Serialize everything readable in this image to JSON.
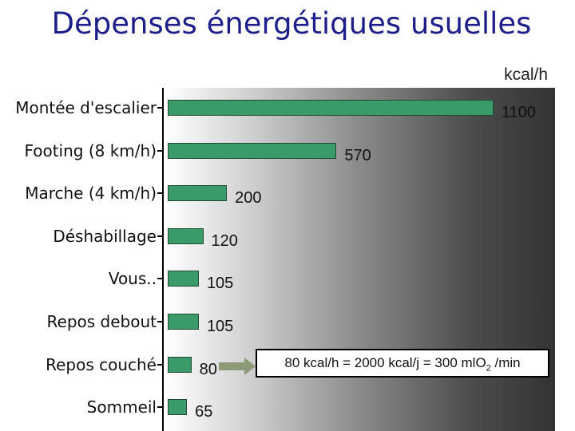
{
  "chart_data": {
    "type": "bar",
    "orientation": "horizontal",
    "title": "Dépenses énergétiques usuelles",
    "unit_label": "kcal/h",
    "categories": [
      "Montée d'escalier",
      "Footing (8 km/h)",
      "Marche (4 km/h)",
      "Déshabillage",
      "Vous..",
      "Repos debout",
      "Repos couché",
      "Sommeil"
    ],
    "values": [
      1100,
      570,
      200,
      120,
      105,
      105,
      80,
      65
    ],
    "data_labels": [
      "1100",
      "570",
      "200",
      "120",
      "105",
      "105",
      "80",
      "65"
    ],
    "xlim": [
      0,
      1100
    ],
    "grid": false,
    "legend": "none"
  },
  "annotation": {
    "text_before": "80 kcal/h = 2000 kcal/j = 300 mlO",
    "subscript": "2",
    "text_after": " /min"
  },
  "colors": {
    "bar": "#3a9a6a",
    "title": "#1f1f8c",
    "arrow": "#8c9a78"
  }
}
